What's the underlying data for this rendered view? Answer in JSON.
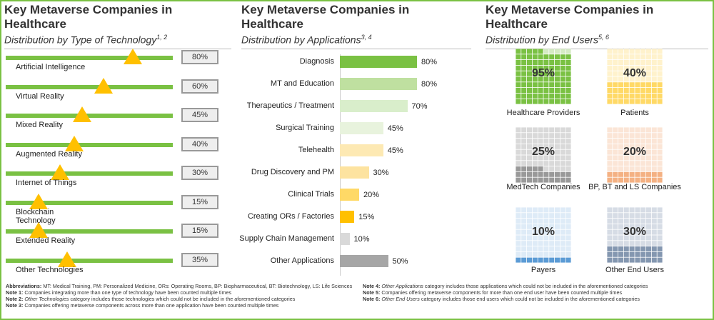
{
  "colors": {
    "frame": "#7ac143",
    "green": "#7ac143",
    "amber": "#ffc000"
  },
  "panel1": {
    "title": "Key Metaverse Companies in Healthcare",
    "subtitle": "Distribution by Type of Technology",
    "subtitle_sup": "1, 2"
  },
  "panel2": {
    "title": "Key Metaverse Companies in Healthcare",
    "subtitle": "Distribution by Applications",
    "subtitle_sup": "3, 4"
  },
  "panel3": {
    "title": "Key Metaverse Companies in Healthcare",
    "subtitle": "Distribution by End Users",
    "subtitle_sup": "5, 6"
  },
  "chart_data": [
    {
      "type": "bar",
      "title": "Distribution by Type of Technology",
      "categories": [
        "Artificial Intelligence",
        "Virtual Reality",
        "Mixed Reality",
        "Augmented Reality",
        "Internet of Things",
        "Blockchain Technology",
        "Extended Reality",
        "Other Technologies"
      ],
      "values": [
        80,
        60,
        45,
        40,
        30,
        15,
        15,
        35
      ],
      "labels": [
        "80%",
        "60%",
        "45%",
        "40%",
        "30%",
        "15%",
        "15%",
        "35%"
      ],
      "unit": "%"
    },
    {
      "type": "bar",
      "title": "Distribution by Applications",
      "categories": [
        "Diagnosis",
        "MT and Education",
        "Therapeutics / Treatment",
        "Surgical Training",
        "Telehealth",
        "Drug Discovery and PM",
        "Clinical Trials",
        "Creating ORs / Factories",
        "Supply Chain Management",
        "Other Applications"
      ],
      "values": [
        80,
        80,
        70,
        45,
        45,
        30,
        20,
        15,
        10,
        50
      ],
      "labels": [
        "80%",
        "80%",
        "70%",
        "45%",
        "45%",
        "30%",
        "20%",
        "15%",
        "10%",
        "50%"
      ],
      "colors": [
        "#7ac143",
        "#bfe0a0",
        "#d9eecb",
        "#e8f3dd",
        "#fde9b3",
        "#fde3a0",
        "#ffd966",
        "#ffc000",
        "#d9d9d9",
        "#a6a6a6"
      ],
      "xlim": [
        0,
        100
      ],
      "unit": "%"
    },
    {
      "type": "waffle",
      "title": "Distribution by End Users",
      "categories": [
        "Healthcare Providers",
        "Patients",
        "MedTech Companies",
        "BP, BT and LS Companies",
        "Payers",
        "Other End Users"
      ],
      "values": [
        95,
        40,
        25,
        20,
        10,
        30
      ],
      "labels": [
        "95%",
        "40%",
        "25%",
        "20%",
        "10%",
        "30%"
      ],
      "fill_colors": [
        "#7ac143",
        "#ffd966",
        "#999999",
        "#f4b183",
        "#5b9bd5",
        "#8497b0"
      ],
      "empty_colors": [
        "#d5ebc4",
        "#fff2cc",
        "#d9d9d9",
        "#fbe5d6",
        "#deebf7",
        "#d6dce5"
      ]
    }
  ],
  "footer": {
    "abbrev_label": "Abbreviations:",
    "abbrev_text": "MT: Medical Training, PM: Personalized Medicine, ORs: Operating Rooms, BP: Biopharmaceutical, BT: Biotechnology, LS: Life Sciences",
    "note1_label": "Note 1:",
    "note1_text": "Companies integrating more than one type of technology have been counted multiple times",
    "note2_label": "Note 2:",
    "note2_em": "Other Technologies",
    "note2_text": "category includes those technologies which could not be included in the aforementioned categories",
    "note3_label": "Note 3:",
    "note3_text": "Companies offering metaverse components across more than one application have been counted multiple times",
    "note4_label": "Note 4:",
    "note4_em": "Other Applications",
    "note4_text": "category includes those applications which could not be included in the aforementioned categories",
    "note5_label": "Note 5:",
    "note5_text": "Companies offering metaverse components for more than one end user have been counted multiple times",
    "note6_label": "Note 6:",
    "note6_em": "Other End Users",
    "note6_text": "category includes those end users which could not be included in the aforementioned categories"
  }
}
